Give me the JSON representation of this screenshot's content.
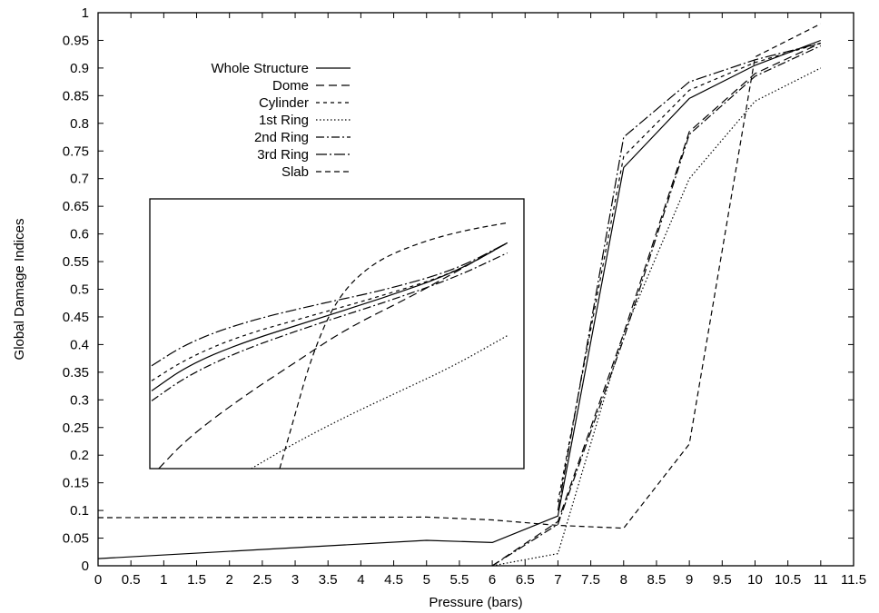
{
  "chart_data": {
    "type": "line",
    "title": "",
    "xlabel": "Pressure (bars)",
    "ylabel": "Global Damage Indices",
    "xlim": [
      0,
      11.5
    ],
    "ylim": [
      0,
      1
    ],
    "xticks": [
      "0",
      "0.5",
      "1",
      "1.5",
      "2",
      "2.5",
      "3",
      "3.5",
      "4",
      "4.5",
      "5",
      "5.5",
      "6",
      "6.5",
      "7",
      "7.5",
      "8",
      "8.5",
      "9",
      "9.5",
      "10",
      "10.5",
      "11",
      "11.5"
    ],
    "yticks": [
      "0",
      "0.05",
      "0.1",
      "0.15",
      "0.2",
      "0.25",
      "0.3",
      "0.35",
      "0.4",
      "0.45",
      "0.5",
      "0.55",
      "0.6",
      "0.65",
      "0.7",
      "0.75",
      "0.8",
      "0.85",
      "0.9",
      "0.95",
      "1"
    ],
    "grid": false,
    "legend_position": "top-left",
    "series": [
      {
        "name": "Whole Structure",
        "dash": "solid",
        "x": [
          0,
          5,
          6,
          7,
          8,
          9,
          10,
          11
        ],
        "y": [
          0.013,
          0.046,
          0.042,
          0.09,
          0.72,
          0.845,
          0.905,
          0.95
        ]
      },
      {
        "name": "Dome",
        "dash": "dashed",
        "x": [
          6,
          7,
          8,
          9,
          10,
          11
        ],
        "y": [
          0.0,
          0.08,
          0.42,
          0.785,
          0.89,
          0.945
        ]
      },
      {
        "name": "Cylinder",
        "dash": "short-dashed",
        "x": [
          7,
          8,
          9,
          10,
          11
        ],
        "y": [
          0.115,
          0.74,
          0.86,
          0.91,
          0.945
        ]
      },
      {
        "name": "1st Ring",
        "dash": "dotted",
        "x": [
          6,
          7,
          8,
          9,
          10,
          11
        ],
        "y": [
          0.0,
          0.022,
          0.42,
          0.7,
          0.84,
          0.9
        ]
      },
      {
        "name": "2nd Ring",
        "dash": "dash-dot",
        "x": [
          6,
          7,
          8,
          9,
          10,
          11
        ],
        "y": [
          0.0,
          0.075,
          0.41,
          0.78,
          0.885,
          0.94
        ]
      },
      {
        "name": "3rd Ring",
        "dash": "long-dash-dot",
        "x": [
          7,
          8,
          9,
          10,
          11
        ],
        "y": [
          0.1,
          0.775,
          0.875,
          0.915,
          0.945
        ]
      },
      {
        "name": "Slab",
        "dash": "medium-dashed",
        "x": [
          0,
          5,
          6,
          7,
          8,
          9,
          10,
          11
        ],
        "y": [
          0.087,
          0.088,
          0.083,
          0.073,
          0.068,
          0.22,
          0.92,
          0.98
        ]
      }
    ],
    "inset": {
      "description_free": true,
      "curves": [
        {
          "series": "Whole Structure",
          "u": [
            0,
            0.1,
            0.25,
            0.45,
            0.65,
            0.85,
            1
          ],
          "v": [
            0.31,
            0.41,
            0.5,
            0.59,
            0.68,
            0.78,
            0.9
          ]
        },
        {
          "series": "Dome",
          "u": [
            0.02,
            0.1,
            0.25,
            0.4,
            0.55,
            0.75,
            1
          ],
          "v": [
            0.0,
            0.12,
            0.28,
            0.42,
            0.56,
            0.7,
            0.9
          ]
        },
        {
          "series": "Cylinder",
          "u": [
            0,
            0.1,
            0.25,
            0.45,
            0.65,
            0.85,
            1
          ],
          "v": [
            0.35,
            0.44,
            0.53,
            0.61,
            0.69,
            0.78,
            0.9
          ]
        },
        {
          "series": "1st Ring",
          "u": [
            0.28,
            0.4,
            0.55,
            0.7,
            0.85,
            1
          ],
          "v": [
            0.0,
            0.1,
            0.21,
            0.31,
            0.41,
            0.53
          ]
        },
        {
          "series": "2nd Ring",
          "u": [
            0,
            0.1,
            0.25,
            0.45,
            0.65,
            0.85,
            1
          ],
          "v": [
            0.27,
            0.37,
            0.47,
            0.57,
            0.66,
            0.76,
            0.86
          ]
        },
        {
          "series": "3rd Ring",
          "u": [
            0,
            0.1,
            0.25,
            0.45,
            0.65,
            0.85,
            1
          ],
          "v": [
            0.41,
            0.5,
            0.58,
            0.65,
            0.71,
            0.79,
            0.9
          ]
        },
        {
          "series": "Slab",
          "u": [
            0.36,
            0.4,
            0.45,
            0.52,
            0.62,
            0.75,
            0.88,
            1
          ],
          "v": [
            0.0,
            0.2,
            0.45,
            0.68,
            0.82,
            0.9,
            0.95,
            0.98
          ]
        }
      ]
    }
  }
}
